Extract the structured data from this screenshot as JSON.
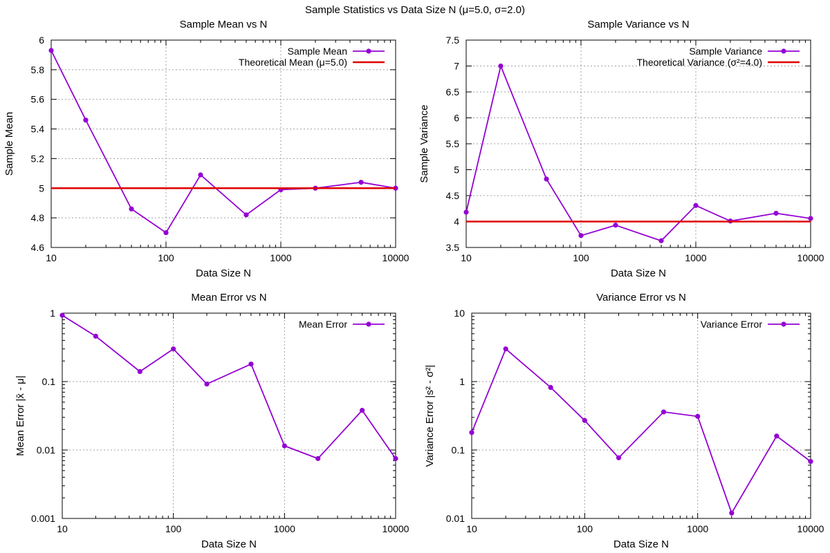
{
  "page_title": "Sample Statistics vs Data Size N (μ=5.0, σ=2.0)",
  "colors": {
    "sample": "#9400d3",
    "theory": "#e00000",
    "grid": "#a0a0a0",
    "axis": "#000000"
  },
  "chart_data": [
    {
      "id": "mean",
      "type": "line",
      "title": "Sample Mean vs N",
      "xlabel": "Data Size N",
      "ylabel": "Sample Mean",
      "xscale": "log",
      "yscale": "linear",
      "xlim": [
        10,
        10000
      ],
      "ylim": [
        4.6,
        6
      ],
      "xticks": [
        10,
        100,
        1000,
        10000
      ],
      "xtick_labels": [
        "10",
        "100",
        "1000",
        "10000"
      ],
      "yticks": [
        4.6,
        4.8,
        5,
        5.2,
        5.4,
        5.6,
        5.8,
        6
      ],
      "ytick_labels": [
        "4.6",
        "4.8",
        "5",
        "5.2",
        "5.4",
        "5.6",
        "5.8",
        "6"
      ],
      "grid": true,
      "legend_position": "top-right",
      "series": [
        {
          "name": "Sample Mean",
          "kind": "points-line",
          "x": [
            10,
            20,
            50,
            100,
            200,
            500,
            1000,
            2000,
            5000,
            10000
          ],
          "y": [
            5.93,
            5.46,
            4.86,
            4.7,
            5.09,
            4.82,
            4.99,
            5.0,
            5.04,
            5.0
          ]
        },
        {
          "name": "Theoretical Mean (μ=5.0)",
          "kind": "hline",
          "y": 5.0
        }
      ]
    },
    {
      "id": "variance",
      "type": "line",
      "title": "Sample Variance vs N",
      "xlabel": "Data Size N",
      "ylabel": "Sample Variance",
      "xscale": "log",
      "yscale": "linear",
      "xlim": [
        10,
        10000
      ],
      "ylim": [
        3.5,
        7.5
      ],
      "xticks": [
        10,
        100,
        1000,
        10000
      ],
      "xtick_labels": [
        "10",
        "100",
        "1000",
        "10000"
      ],
      "yticks": [
        3.5,
        4,
        4.5,
        5,
        5.5,
        6,
        6.5,
        7,
        7.5
      ],
      "ytick_labels": [
        "3.5",
        "4",
        "4.5",
        "5",
        "5.5",
        "6",
        "6.5",
        "7",
        "7.5"
      ],
      "grid": true,
      "legend_position": "top-right",
      "series": [
        {
          "name": "Sample Variance",
          "kind": "points-line",
          "x": [
            10,
            20,
            50,
            100,
            200,
            500,
            1000,
            2000,
            5000,
            10000
          ],
          "y": [
            4.18,
            7.0,
            4.82,
            3.73,
            3.93,
            3.63,
            4.31,
            4.01,
            4.16,
            4.06
          ]
        },
        {
          "name": "Theoretical Variance (σ²=4.0)",
          "kind": "hline",
          "y": 4.0
        }
      ]
    },
    {
      "id": "mean_error",
      "type": "line",
      "title": "Mean Error vs N",
      "xlabel": "Data Size N",
      "ylabel": "Mean Error |x̄ - μ|",
      "xscale": "log",
      "yscale": "log",
      "xlim": [
        10,
        10000
      ],
      "ylim": [
        0.001,
        1
      ],
      "xticks": [
        10,
        100,
        1000,
        10000
      ],
      "xtick_labels": [
        "10",
        "100",
        "1000",
        "10000"
      ],
      "yticks": [
        0.001,
        0.01,
        0.1,
        1
      ],
      "ytick_labels": [
        "0.001",
        "0.01",
        "0.1",
        "1"
      ],
      "grid": true,
      "legend_position": "top-right",
      "series": [
        {
          "name": "Mean Error",
          "kind": "points-line",
          "x": [
            10,
            20,
            50,
            100,
            200,
            500,
            1000,
            2000,
            5000,
            10000
          ],
          "y": [
            0.93,
            0.46,
            0.14,
            0.3,
            0.092,
            0.18,
            0.0115,
            0.0075,
            0.038,
            0.0075
          ]
        }
      ]
    },
    {
      "id": "variance_error",
      "type": "line",
      "title": "Variance Error vs N",
      "xlabel": "Data Size N",
      "ylabel": "Variance Error |s² - σ²|",
      "xscale": "log",
      "yscale": "log",
      "xlim": [
        10,
        10000
      ],
      "ylim": [
        0.01,
        10
      ],
      "xticks": [
        10,
        100,
        1000,
        10000
      ],
      "xtick_labels": [
        "10",
        "100",
        "1000",
        "10000"
      ],
      "yticks": [
        0.01,
        0.1,
        1,
        10
      ],
      "ytick_labels": [
        "0.01",
        "0.1",
        "1",
        "10"
      ],
      "grid": true,
      "legend_position": "top-right",
      "series": [
        {
          "name": "Variance Error",
          "kind": "points-line",
          "x": [
            10,
            20,
            50,
            100,
            200,
            500,
            1000,
            2000,
            5000,
            10000
          ],
          "y": [
            0.18,
            3.0,
            0.82,
            0.27,
            0.077,
            0.36,
            0.31,
            0.012,
            0.16,
            0.068
          ]
        }
      ]
    }
  ]
}
